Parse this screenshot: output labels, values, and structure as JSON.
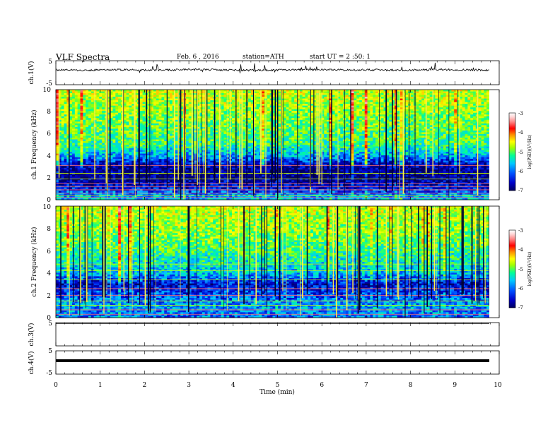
{
  "header": {
    "title": "VLF Spectra",
    "date": "Feb. 6 , 2016",
    "station": "station=ATH",
    "start": "start UT = 2 :50: 1"
  },
  "colors": {
    "spectrogram_colormap": [
      "#000060",
      "#0000c8",
      "#0050ff",
      "#00c8ff",
      "#00ff96",
      "#a0ff00",
      "#ffff00",
      "#ff8c00",
      "#ff0000",
      "#ff8080",
      "#ffd8d8",
      "#ffffff"
    ]
  },
  "chart_data": [
    {
      "type": "line",
      "panel": "ch1-waveform",
      "ylabel": "ch.1(V)",
      "ylim": [
        -5,
        5
      ],
      "ytick_labels": [
        "5",
        "-5"
      ],
      "x_range_min": [
        0,
        9.8
      ],
      "series": [
        {
          "values": [
            1.2,
            1.0,
            1.3,
            1.1,
            1.2,
            1.4,
            1.1,
            1.0,
            1.2,
            1.3,
            1.1,
            1.2,
            1.0,
            1.3,
            1.2,
            1.1
          ]
        }
      ]
    },
    {
      "type": "heatmap",
      "panel": "ch1-spectrogram",
      "ylabel": "ch.1 Frequency (kHz)",
      "ylim": [
        0,
        10
      ],
      "yticks": [
        "0",
        "2",
        "4",
        "6",
        "8",
        "10"
      ],
      "colorbar": {
        "label": "log(PSD)(V²/Hz)",
        "range": [
          -7,
          -3
        ],
        "ticks": [
          "-3",
          "-4",
          "-5",
          "-6",
          "-7"
        ]
      },
      "profile_kHz": [
        0,
        1,
        2,
        3,
        4,
        5,
        6,
        7,
        8,
        9,
        10
      ],
      "profile_logPSD": [
        -5.8,
        -6.5,
        -6.9,
        -6.8,
        -6.0,
        -5.5,
        -5.4,
        -5.3,
        -5.2,
        -5.1,
        -5.0
      ],
      "line_frequencies_kHz": [
        0.2,
        0.4,
        0.6,
        0.9,
        1.2,
        1.5,
        1.9,
        2.4,
        3.1
      ]
    },
    {
      "type": "heatmap",
      "panel": "ch2-spectrogram",
      "ylabel": "ch.2 Frequency (kHz)",
      "ylim": [
        0,
        10
      ],
      "yticks": [
        "0",
        "2",
        "4",
        "6",
        "8",
        "10"
      ],
      "colorbar": {
        "label": "log(PSD)(V²/Hz)",
        "range": [
          -7,
          -3
        ],
        "ticks": [
          "-3",
          "-4",
          "-5",
          "-6",
          "-7"
        ]
      },
      "profile_kHz": [
        0,
        1,
        2,
        3,
        4,
        5,
        6,
        7,
        8,
        9,
        10
      ],
      "profile_logPSD": [
        -6.2,
        -6.0,
        -6.3,
        -6.6,
        -5.9,
        -5.7,
        -5.5,
        -5.3,
        -5.2,
        -5.1,
        -5.0
      ],
      "line_frequencies_kHz": [
        0.3,
        0.7,
        1.1,
        1.5,
        2.0,
        2.6,
        3.4,
        4.2,
        4.8
      ]
    },
    {
      "type": "line",
      "panel": "ch3-waveform",
      "ylabel": "ch.3(V)",
      "ylim": [
        -5,
        5
      ],
      "ytick_labels": [
        "5"
      ],
      "series": [
        {
          "values": [
            0,
            0,
            0,
            0,
            0,
            0,
            0,
            0
          ]
        }
      ]
    },
    {
      "type": "line",
      "panel": "ch4-waveform",
      "ylabel": "ch.4(V)",
      "ylim": [
        -5,
        5
      ],
      "ytick_labels": [
        "5",
        "-5"
      ],
      "series": [
        {
          "values": [
            -0.6,
            -0.6,
            -0.6,
            -0.6,
            -0.6,
            -0.6,
            -0.6,
            -0.6
          ]
        }
      ]
    }
  ],
  "xaxis": {
    "label": "Time (min)",
    "range": [
      0,
      10
    ],
    "tick_labels": [
      "0",
      "1",
      "2",
      "3",
      "4",
      "5",
      "6",
      "7",
      "8",
      "9",
      "10"
    ]
  }
}
